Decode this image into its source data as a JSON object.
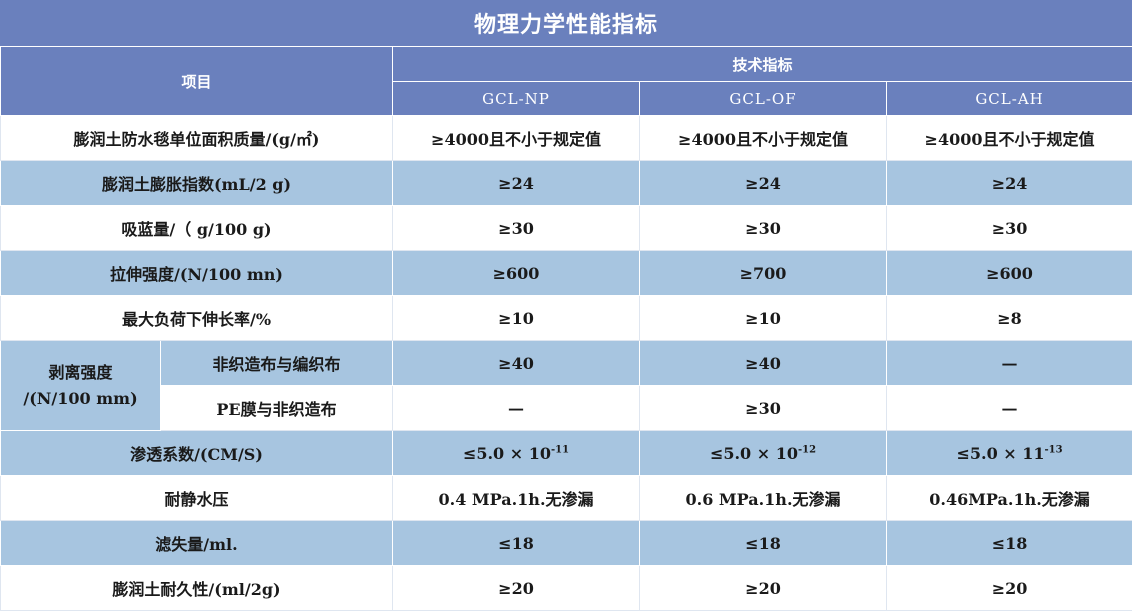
{
  "title": "物理力学性能指标",
  "header": {
    "item_label": "项目",
    "group_label": "技术指标",
    "columns": [
      "GCL-NP",
      "GCL-OF",
      "GCL-AH"
    ]
  },
  "rows": {
    "mass": {
      "label": "膨润土防水毯单位面积质量/(g/㎡)",
      "values": [
        "≥4000且不小于规定值",
        "≥4000且不小于规定值",
        "≥4000且不小于规定值"
      ]
    },
    "swell": {
      "label": "膨润土膨胀指数(mL/2 g)",
      "values": [
        "≥24",
        "≥24",
        "≥24"
      ]
    },
    "blue_absorb": {
      "label": "吸蓝量/（ g/100 g)",
      "values": [
        "≥30",
        "≥30",
        "≥30"
      ]
    },
    "tensile": {
      "label": "拉伸强度/(N/100 mn)",
      "values": [
        "≥600",
        "≥700",
        "≥600"
      ]
    },
    "elongation": {
      "label": "最大负荷下伸长率/%",
      "values": [
        "≥10",
        "≥10",
        "≥8"
      ]
    },
    "peel": {
      "label_line1": "剥离强度",
      "label_line2": "/(N/100 mm)",
      "sub1": {
        "label": "非织造布与编织布",
        "values": [
          "≥40",
          "≥40",
          "—"
        ]
      },
      "sub2": {
        "label": "PE膜与非织造布",
        "values": [
          "—",
          "≥30",
          "—"
        ]
      }
    },
    "permeability": {
      "label": "渗透系数/(CM/S)",
      "values": [
        {
          "base": "≤5.0 × 10",
          "exp": "-11"
        },
        {
          "base": "≤5.0 × 10",
          "exp": "-12"
        },
        {
          "base": "≤5.0 × 11",
          "exp": "-13"
        }
      ]
    },
    "hydrostatic": {
      "label": "耐静水压",
      "values": [
        "0.4 MPa.1h.无渗漏",
        "0.6 MPa.1h.无渗漏",
        "0.46MPa.1h.无渗漏"
      ]
    },
    "fluid_loss": {
      "label": "滤失量/ml.",
      "values": [
        "≤18",
        "≤18",
        "≤18"
      ]
    },
    "durability": {
      "label": "膨润土耐久性/(ml/2g)",
      "values": [
        "≥20",
        "≥20",
        "≥20"
      ]
    }
  }
}
